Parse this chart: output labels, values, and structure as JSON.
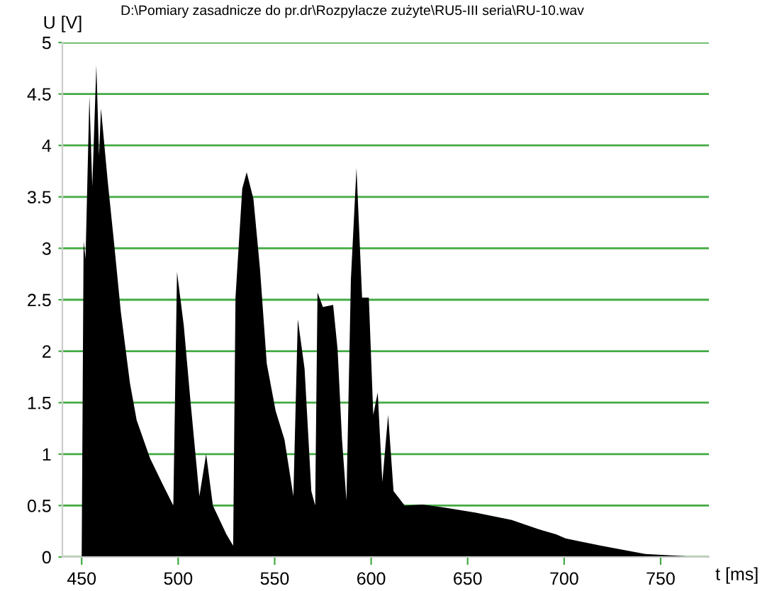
{
  "chart_data": {
    "type": "area",
    "title": "D:\\Pomiary zasadnicze do pr.dr\\Rozpylacze zużyte\\RU5-III seria\\RU-10.wav",
    "xlabel": "t [ms]",
    "ylabel": "U [V]",
    "x": [
      450,
      451,
      452,
      454,
      455.5,
      457.6,
      459,
      460,
      463.4,
      466.9,
      470.3,
      475,
      478.5,
      485.4,
      492.4,
      497.5,
      499.4,
      502.9,
      506.4,
      511,
      514.5,
      518,
      525,
      528.5,
      529.7,
      533.2,
      535.5,
      539,
      542.4,
      545.9,
      550.5,
      555.1,
      559.7,
      562,
      565.5,
      569,
      571,
      572.2,
      575,
      580.3,
      582.6,
      584.9,
      587.2,
      589.5,
      592.4,
      595.3,
      598.8,
      601.1,
      603.4,
      605.8,
      608.8,
      611.6,
      617.4,
      626.6,
      638,
      654.3,
      672.8,
      686.7,
      695.8,
      700.7,
      719,
      742,
      770
    ],
    "values": [
      0,
      3.07,
      2.9,
      4.48,
      3.6,
      4.78,
      3.9,
      4.36,
      3.67,
      3.03,
      2.38,
      1.69,
      1.33,
      0.96,
      0.69,
      0.5,
      2.77,
      2.25,
      1.51,
      0.59,
      1.0,
      0.5,
      0.22,
      0.11,
      2.52,
      3.58,
      3.74,
      3.48,
      2.8,
      1.88,
      1.42,
      1.14,
      0.59,
      2.31,
      1.83,
      0.64,
      0.5,
      2.57,
      2.43,
      2.45,
      2.02,
      1.14,
      0.55,
      2.7,
      3.78,
      2.52,
      2.52,
      1.38,
      1.6,
      0.73,
      1.38,
      0.64,
      0.5,
      0.51,
      0.48,
      0.43,
      0.36,
      0.27,
      0.22,
      0.18,
      0.11,
      0.03,
      0
    ],
    "color": "#000000",
    "xlim": [
      440,
      775
    ],
    "xticks": [
      450,
      500,
      550,
      600,
      650,
      700,
      750
    ],
    "ylim": [
      0,
      5
    ],
    "yticks": [
      0,
      0.5,
      1,
      1.5,
      2,
      2.5,
      3,
      3.5,
      4,
      4.5,
      5
    ],
    "grid": "y"
  }
}
